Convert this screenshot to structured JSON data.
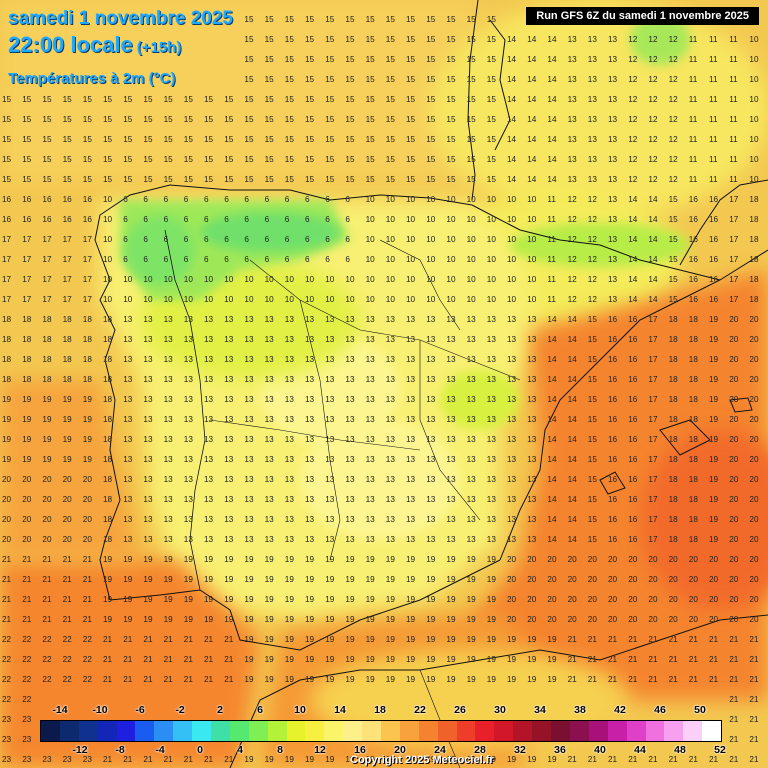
{
  "header": {
    "date": "samedi 1 novembre 2025",
    "time": "22:00 locale",
    "offset": "(+15h)",
    "variable": "Températures à 2m (°C)",
    "run": "Run GFS 6Z du samedi 1 novembre 2025"
  },
  "legend": {
    "top_labels": [
      "-14",
      "-10",
      "-6",
      "-2",
      "2",
      "6",
      "10",
      "14",
      "18",
      "22",
      "26",
      "30",
      "34",
      "38",
      "42",
      "46",
      "50"
    ],
    "bottom_labels": [
      "-12",
      "-8",
      "-4",
      "0",
      "4",
      "8",
      "12",
      "16",
      "20",
      "24",
      "28",
      "32",
      "36",
      "40",
      "44",
      "48",
      "52"
    ],
    "colors": [
      "#0b1a4a",
      "#0d2a6e",
      "#10318f",
      "#1326b8",
      "#1f1fe0",
      "#1a5cf0",
      "#2a8ef5",
      "#35c0f5",
      "#3ae8f0",
      "#3fe0a8",
      "#57e870",
      "#7ef055",
      "#b4f23a",
      "#e8f22c",
      "#f7f040",
      "#fbf36a",
      "#fdf08a",
      "#fde27a",
      "#fbc44e",
      "#f8a23e",
      "#f5822e",
      "#f1612a",
      "#ee3e2a",
      "#e8202a",
      "#d21828",
      "#b41428",
      "#961226",
      "#7a1030",
      "#8a1050",
      "#a8107a",
      "#c820a8",
      "#e040c8",
      "#f070e0",
      "#f8a0f0",
      "#fbd0f8",
      "#ffffff"
    ]
  },
  "copyright": "Copyright 2025 Meteociel.fr",
  "map": {
    "regions": [
      {
        "name": "north-atlantic",
        "color": "#f3cc52"
      },
      {
        "name": "cantabria-cool",
        "color": "#8ee85a"
      },
      {
        "name": "central-plateau",
        "color": "#f4f06c"
      },
      {
        "name": "mediterranean-warm",
        "color": "#f5842e"
      }
    ]
  }
}
